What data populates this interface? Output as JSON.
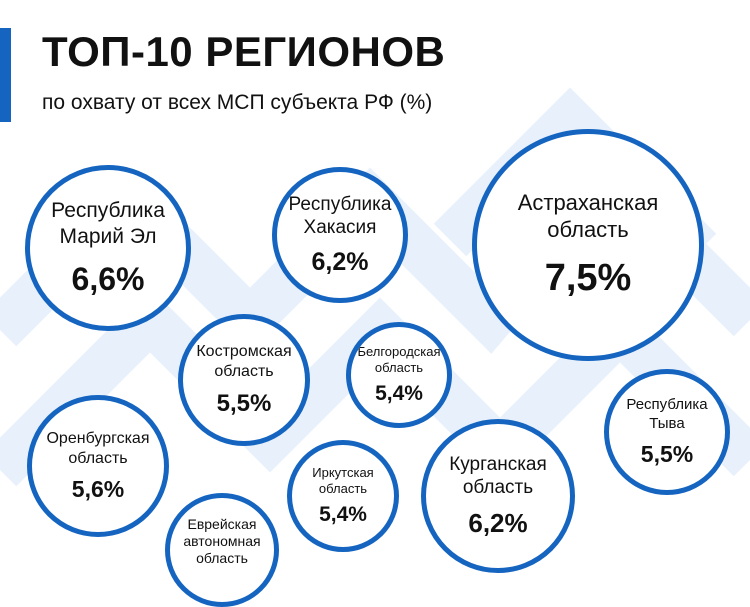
{
  "title": "ТОП-10 РЕГИОНОВ",
  "subtitle": "по охвату от всех МСП субъекта РФ (%)",
  "colors": {
    "accent": "#1565c0",
    "background_pattern": "#e8f1fb",
    "text": "#111111"
  },
  "chart_data": {
    "type": "bubble",
    "title": "ТОП-10 РЕГИОНОВ",
    "subtitle": "по охвату от всех МСП субъекта РФ (%)",
    "unit": "%",
    "categories": [
      "Республика Марий Эл",
      "Республика Хакасия",
      "Астраханская область",
      "Костромская область",
      "Белгородская область",
      "Оренбургская область",
      "Республика Тыва",
      "Иркутская область",
      "Курганская область",
      "Еврейская автономная область"
    ],
    "values": [
      6.6,
      6.2,
      7.5,
      5.5,
      5.4,
      5.6,
      5.5,
      5.4,
      6.2,
      null
    ],
    "labels": [
      {
        "name_lines": [
          "Республика",
          "Марий Эл"
        ],
        "value_label": "6,6%"
      },
      {
        "name_lines": [
          "Республика",
          "Хакасия"
        ],
        "value_label": "6,2%"
      },
      {
        "name_lines": [
          "Астраханская",
          "область"
        ],
        "value_label": "7,5%"
      },
      {
        "name_lines": [
          "Костромская",
          "область"
        ],
        "value_label": "5,5%"
      },
      {
        "name_lines": [
          "Белгородская",
          "область"
        ],
        "value_label": "5,4%"
      },
      {
        "name_lines": [
          "Оренбургская",
          "область"
        ],
        "value_label": "5,6%"
      },
      {
        "name_lines": [
          "Республика",
          "Тыва"
        ],
        "value_label": "5,5%"
      },
      {
        "name_lines": [
          "Иркутская",
          "область"
        ],
        "value_label": "5,4%"
      },
      {
        "name_lines": [
          "Курганская",
          "область"
        ],
        "value_label": "6,2%"
      },
      {
        "name_lines": [
          "Еврейская",
          "автономная",
          "область"
        ],
        "value_label": ""
      }
    ]
  }
}
